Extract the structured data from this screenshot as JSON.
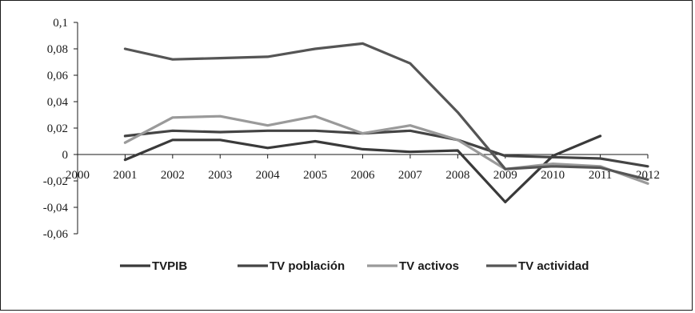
{
  "chart_data": {
    "type": "line",
    "x": [
      2000,
      2001,
      2002,
      2003,
      2004,
      2005,
      2006,
      2007,
      2008,
      2009,
      2010,
      2011,
      2012
    ],
    "x_tick_labels": [
      "2000",
      "2001",
      "2002",
      "2003",
      "2004",
      "2005",
      "2006",
      "2007",
      "2008",
      "2009",
      "2010",
      "2011",
      "2012"
    ],
    "y_tick_labels": [
      "0,1",
      "0,08",
      "0,06",
      "0,04",
      "0,02",
      "0",
      "-0,02",
      "-0,04",
      "-0,06"
    ],
    "y_ticks": [
      0.1,
      0.08,
      0.06,
      0.04,
      0.02,
      0,
      -0.02,
      -0.04,
      -0.06
    ],
    "ylim": [
      -0.06,
      0.1
    ],
    "xlim": [
      2000,
      2012
    ],
    "grid": false,
    "legend_position": "bottom",
    "series": [
      {
        "name": "TVPIB",
        "color": "#3a3a3a",
        "x": [
          2001,
          2002,
          2003,
          2004,
          2005,
          2006,
          2007,
          2008,
          2009,
          2010,
          2011
        ],
        "values": [
          -0.004,
          0.011,
          0.011,
          0.005,
          0.01,
          0.004,
          0.002,
          0.003,
          -0.036,
          -0.001,
          0.014
        ]
      },
      {
        "name": "TV población",
        "color": "#444444",
        "x": [
          2001,
          2002,
          2003,
          2004,
          2005,
          2006,
          2007,
          2008,
          2009,
          2010,
          2011,
          2012
        ],
        "values": [
          0.014,
          0.018,
          0.017,
          0.018,
          0.018,
          0.016,
          0.018,
          0.011,
          -0.001,
          -0.002,
          -0.003,
          -0.009
        ]
      },
      {
        "name": "TV activos",
        "color": "#9a9a9a",
        "x": [
          2001,
          2002,
          2003,
          2004,
          2005,
          2006,
          2007,
          2008,
          2009,
          2010,
          2011,
          2012
        ],
        "values": [
          0.009,
          0.028,
          0.029,
          0.022,
          0.029,
          0.016,
          0.022,
          0.011,
          -0.011,
          -0.007,
          -0.009,
          -0.022
        ]
      },
      {
        "name": "TV actividad",
        "color": "#555555",
        "x": [
          2001,
          2002,
          2003,
          2004,
          2005,
          2006,
          2007,
          2008,
          2009,
          2010,
          2011,
          2012
        ],
        "values": [
          0.08,
          0.072,
          0.073,
          0.074,
          0.08,
          0.084,
          0.069,
          0.032,
          -0.011,
          -0.009,
          -0.01,
          -0.019
        ]
      }
    ]
  }
}
